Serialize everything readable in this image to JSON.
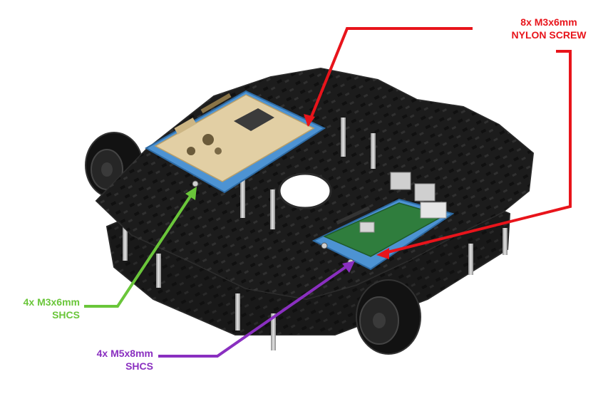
{
  "callouts": {
    "nylon_screw": {
      "line1": "8x M3x6mm",
      "line2": "NYLON SCREW",
      "color": "#e8141b"
    },
    "m3_shcs": {
      "line1": "4x M3x6mm",
      "line2": "SHCS",
      "color": "#6ac63a"
    },
    "m5_shcs": {
      "line1": "4x M5x8mm",
      "line2": "SHCS",
      "color": "#8a2fc0"
    }
  },
  "colors": {
    "chassis": "#1c1c1c",
    "chassis_edge": "#2e2e2e",
    "case_blue": "#4d93d3",
    "controller_board": "#e2cfa4",
    "raspberry_pi_board": "#2f7d3d",
    "standoff": "#b9b9b9",
    "wheel": "#141414"
  }
}
